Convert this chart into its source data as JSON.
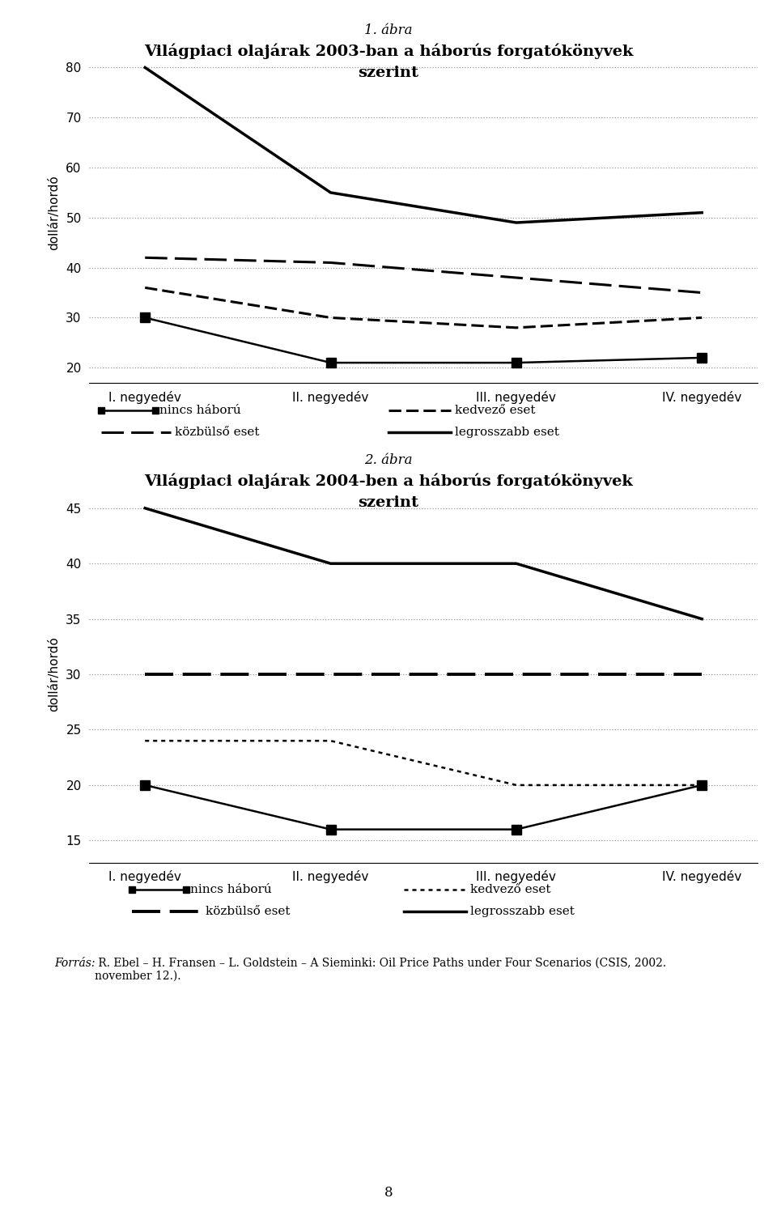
{
  "chart1": {
    "title_line1": "1. ábra",
    "title_line2": "Világpiaci olajárak 2003-ban a háborús forgatókönyvek",
    "title_line3": "szerint",
    "ylabel": "dollár/hordó",
    "xticks": [
      "I. negyedév",
      "II. negyedév",
      "III. negyedév",
      "IV. negyedév"
    ],
    "ylim": [
      17,
      85
    ],
    "yticks": [
      20,
      30,
      40,
      50,
      60,
      70,
      80
    ],
    "series": {
      "nincs_haboru": [
        30,
        21,
        21,
        22
      ],
      "kedvezo_eset": [
        42,
        41,
        38,
        35
      ],
      "kozbulso_eset": [
        36,
        30,
        28,
        30
      ],
      "legrosszabb_eset": [
        80,
        55,
        49,
        51
      ]
    }
  },
  "chart2": {
    "title_line1": "2. ábra",
    "title_line2": "Világpiaci olajárak 2004-ben a háborús forgatókönyvek",
    "title_line3": "szerint",
    "ylabel": "dollár/hordó",
    "xticks": [
      "I. negyedév",
      "II. negyedév",
      "III. negyedév",
      "IV. negyedév"
    ],
    "ylim": [
      13,
      47
    ],
    "yticks": [
      15,
      20,
      25,
      30,
      35,
      40,
      45
    ],
    "series": {
      "nincs_haboru": [
        20,
        16,
        16,
        20
      ],
      "kedvezo_eset": [
        24,
        24,
        20,
        20
      ],
      "kozbulso_eset": [
        30,
        30,
        30,
        30
      ],
      "legrosszabb_eset": [
        45,
        40,
        40,
        35
      ]
    }
  },
  "legend1_labels": [
    "nincs háború",
    "kedvező eset",
    "közbülső eset",
    "legrosszabb eset"
  ],
  "legend2_labels": [
    "nincs háború",
    "kedvező eset",
    "közbülső eset",
    "legrosszabb eset"
  ],
  "source_italic": "Forrás:",
  "source_normal": " R. Ebel – H. Fransen – L. Goldstein – A Sieminki: Oil Price Paths under Four Scenarios (CSIS, 2002.\nnovember 12.).",
  "page_number": "8",
  "line_color": "#000000",
  "grid_color": "#999999",
  "bg_color": "#ffffff",
  "title1_fontsize": 12,
  "title2_fontsize": 14,
  "ylabel_fontsize": 11,
  "tick_fontsize": 11,
  "legend_fontsize": 11,
  "source_fontsize": 10
}
